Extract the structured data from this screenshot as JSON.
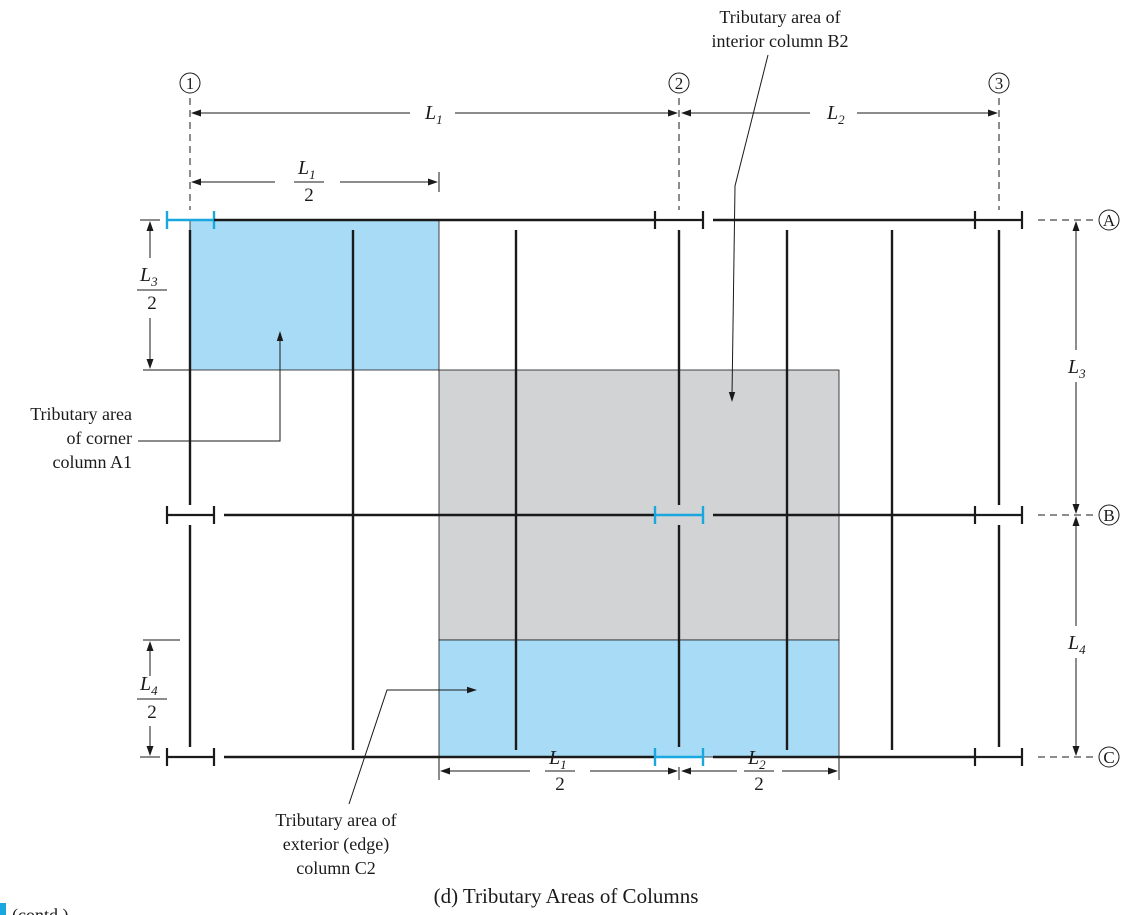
{
  "grid": {
    "columns": [
      "1",
      "2",
      "3"
    ],
    "rows": [
      "A",
      "B",
      "C"
    ]
  },
  "dimensions": {
    "L1": {
      "sym": "L",
      "sub": "1"
    },
    "L2": {
      "sym": "L",
      "sub": "2"
    },
    "L3": {
      "sym": "L",
      "sub": "3"
    },
    "L4": {
      "sym": "L",
      "sub": "4"
    },
    "half_den": "2"
  },
  "labels": {
    "interior": [
      "Tributary area of",
      "interior column B2"
    ],
    "corner": [
      "Tributary area",
      "of corner",
      "column A1"
    ],
    "edge": [
      "Tributary area of",
      "exterior (edge)",
      "column C2"
    ]
  },
  "caption": "(d) Tributary Areas of Columns",
  "figure_ref": "(contd.)",
  "colors": {
    "corner_area": "#a8dcf6",
    "edge_area": "#a8dcf6",
    "interior_area": "#d2d3d5",
    "highlight_girder": "#1aa7e0",
    "line": "#1a1a1a"
  }
}
